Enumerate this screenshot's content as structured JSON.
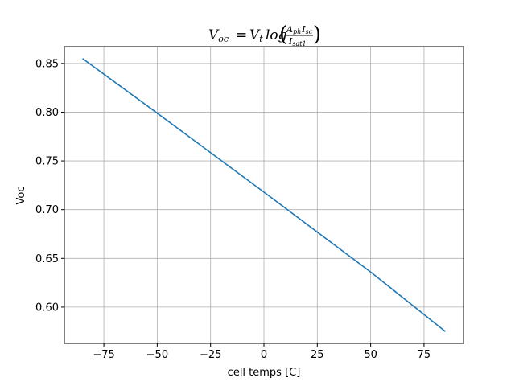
{
  "chart_data": {
    "type": "line",
    "title": {
      "lhs_main": "V",
      "lhs_sub": "oc",
      "equals": "=",
      "rhs_main": "V",
      "rhs_sub": "t",
      "func": "log",
      "num_a": "A",
      "num_a_sub": "ph",
      "num_b": "I",
      "num_b_sub": "sc",
      "den": "I",
      "den_sub": "sat1"
    },
    "xlabel": "cell temps [C]",
    "ylabel": "Voc",
    "xlim": [
      -93.5,
      93.5
    ],
    "ylim": [
      0.5628,
      0.8672
    ],
    "xticks": [
      -75,
      -50,
      -25,
      0,
      25,
      50,
      75
    ],
    "xtick_labels": [
      "−75",
      "−50",
      "−25",
      "0",
      "25",
      "50",
      "75"
    ],
    "yticks": [
      0.6,
      0.65,
      0.7,
      0.75,
      0.8,
      0.85
    ],
    "ytick_labels": [
      "0.60",
      "0.65",
      "0.70",
      "0.75",
      "0.80",
      "0.85"
    ],
    "grid": true,
    "series": [
      {
        "color": "#1f77b4",
        "x": [
          -85,
          -50,
          0,
          50,
          85
        ],
        "y": [
          0.855,
          0.799,
          0.718,
          0.636,
          0.575
        ]
      }
    ]
  }
}
